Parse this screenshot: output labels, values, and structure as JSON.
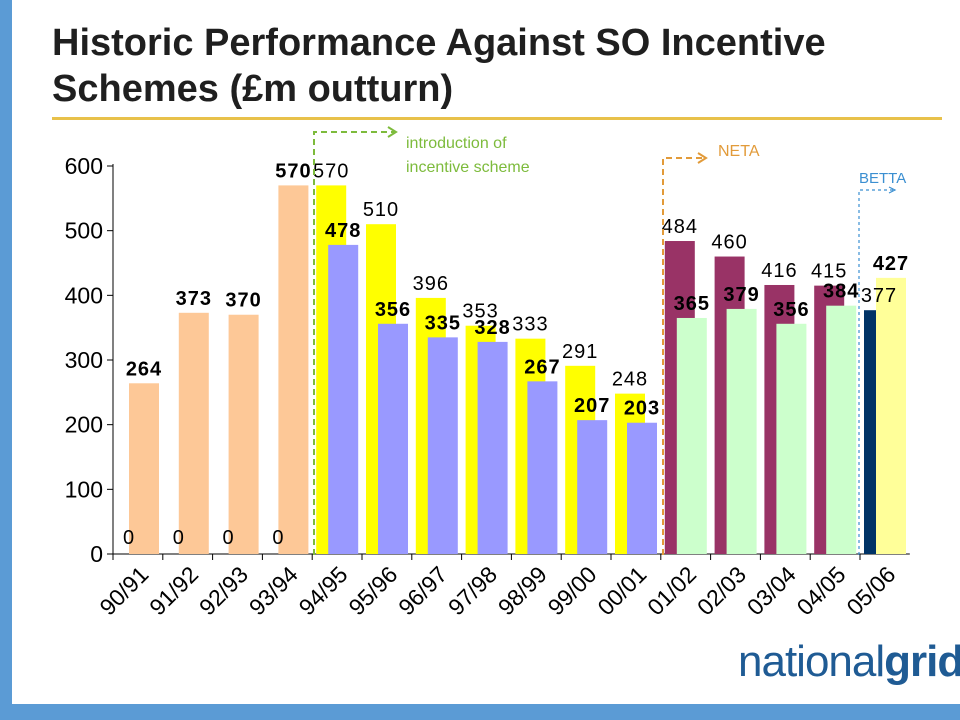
{
  "title": "Historic Performance Against SO Incentive Schemes (£m outturn)",
  "logo": {
    "part1": "national",
    "part2": "grid"
  },
  "annotations": {
    "incentive": [
      "introduction of",
      "incentive scheme"
    ],
    "neta": "NETA",
    "betta": "BETTA"
  },
  "colors": {
    "peach": "#fdc897",
    "yellow": "#ffff00",
    "lavender": "#9999ff",
    "maroon": "#993366",
    "mint": "#ccffcc",
    "navy": "#003366",
    "lightyellow": "#ffff99",
    "green_annot": "#7dbb3c",
    "orange_annot": "#e29b3a",
    "blue_annot": "#3b8fd1",
    "accent_rule": "#e8c14a",
    "frame_blue": "#5b9bd5"
  },
  "chart_data": {
    "type": "bar",
    "categories": [
      "90/91",
      "91/92",
      "92/93",
      "93/94",
      "94/95",
      "95/96",
      "96/97",
      "97/98",
      "98/99",
      "99/00",
      "00/01",
      "01/02",
      "02/03",
      "03/04",
      "04/05",
      "05/06"
    ],
    "ylim": [
      0,
      600
    ],
    "yticks": [
      0,
      100,
      200,
      300,
      400,
      500,
      600
    ],
    "grid": false,
    "bars": [
      {
        "cat": 0,
        "slot": "back",
        "value": 0,
        "label": "0",
        "bold": false,
        "color": "peach"
      },
      {
        "cat": 0,
        "slot": "front",
        "value": 264,
        "label": "264",
        "bold": true,
        "color": "peach"
      },
      {
        "cat": 1,
        "slot": "back",
        "value": 0,
        "label": "0",
        "bold": false,
        "color": "peach"
      },
      {
        "cat": 1,
        "slot": "front",
        "value": 373,
        "label": "373",
        "bold": true,
        "color": "peach"
      },
      {
        "cat": 2,
        "slot": "back",
        "value": 0,
        "label": "0",
        "bold": false,
        "color": "peach"
      },
      {
        "cat": 2,
        "slot": "front",
        "value": 370,
        "label": "370",
        "bold": true,
        "color": "peach"
      },
      {
        "cat": 3,
        "slot": "back",
        "value": 0,
        "label": "0",
        "bold": false,
        "color": "peach"
      },
      {
        "cat": 3,
        "slot": "front",
        "value": 570,
        "label": "570",
        "bold": true,
        "color": "peach"
      },
      {
        "cat": 4,
        "slot": "back",
        "value": 570,
        "label": "570",
        "bold": false,
        "color": "yellow"
      },
      {
        "cat": 4,
        "slot": "front",
        "value": 478,
        "label": "478",
        "bold": true,
        "color": "lavender"
      },
      {
        "cat": 5,
        "slot": "back",
        "value": 510,
        "label": "510",
        "bold": false,
        "color": "yellow"
      },
      {
        "cat": 5,
        "slot": "front",
        "value": 356,
        "label": "356",
        "bold": true,
        "color": "lavender"
      },
      {
        "cat": 6,
        "slot": "back",
        "value": 396,
        "label": "396",
        "bold": false,
        "color": "yellow"
      },
      {
        "cat": 6,
        "slot": "front",
        "value": 335,
        "label": "335",
        "bold": true,
        "color": "lavender"
      },
      {
        "cat": 7,
        "slot": "back",
        "value": 353,
        "label": "353",
        "bold": false,
        "color": "yellow"
      },
      {
        "cat": 7,
        "slot": "front",
        "value": 328,
        "label": "328",
        "bold": true,
        "color": "lavender"
      },
      {
        "cat": 8,
        "slot": "back",
        "value": 333,
        "label": "333",
        "bold": false,
        "color": "yellow"
      },
      {
        "cat": 8,
        "slot": "front",
        "value": 267,
        "label": "267",
        "bold": true,
        "color": "lavender"
      },
      {
        "cat": 9,
        "slot": "back",
        "value": 291,
        "label": "291",
        "bold": false,
        "color": "yellow"
      },
      {
        "cat": 9,
        "slot": "front",
        "value": 207,
        "label": "207",
        "bold": true,
        "color": "lavender"
      },
      {
        "cat": 10,
        "slot": "back",
        "value": 248,
        "label": "248",
        "bold": false,
        "color": "yellow"
      },
      {
        "cat": 10,
        "slot": "front",
        "value": 203,
        "label": "203",
        "bold": true,
        "color": "lavender"
      },
      {
        "cat": 11,
        "slot": "back",
        "value": 484,
        "label": "484",
        "bold": false,
        "color": "maroon"
      },
      {
        "cat": 11,
        "slot": "front",
        "value": 365,
        "label": "365",
        "bold": true,
        "color": "mint"
      },
      {
        "cat": 12,
        "slot": "back",
        "value": 460,
        "label": "460",
        "bold": false,
        "color": "maroon"
      },
      {
        "cat": 12,
        "slot": "front",
        "value": 379,
        "label": "379",
        "bold": true,
        "color": "mint"
      },
      {
        "cat": 13,
        "slot": "back",
        "value": 416,
        "label": "416",
        "bold": false,
        "color": "maroon"
      },
      {
        "cat": 13,
        "slot": "front",
        "value": 356,
        "label": "356",
        "bold": true,
        "color": "mint"
      },
      {
        "cat": 14,
        "slot": "back",
        "value": 415,
        "label": "415",
        "bold": false,
        "color": "maroon"
      },
      {
        "cat": 14,
        "slot": "front",
        "value": 384,
        "label": "384",
        "bold": true,
        "color": "mint"
      },
      {
        "cat": 15,
        "slot": "back",
        "value": 377,
        "label": "377",
        "bold": false,
        "color": "navy"
      },
      {
        "cat": 15,
        "slot": "front",
        "value": 427,
        "label": "427",
        "bold": true,
        "color": "lightyellow"
      }
    ]
  }
}
